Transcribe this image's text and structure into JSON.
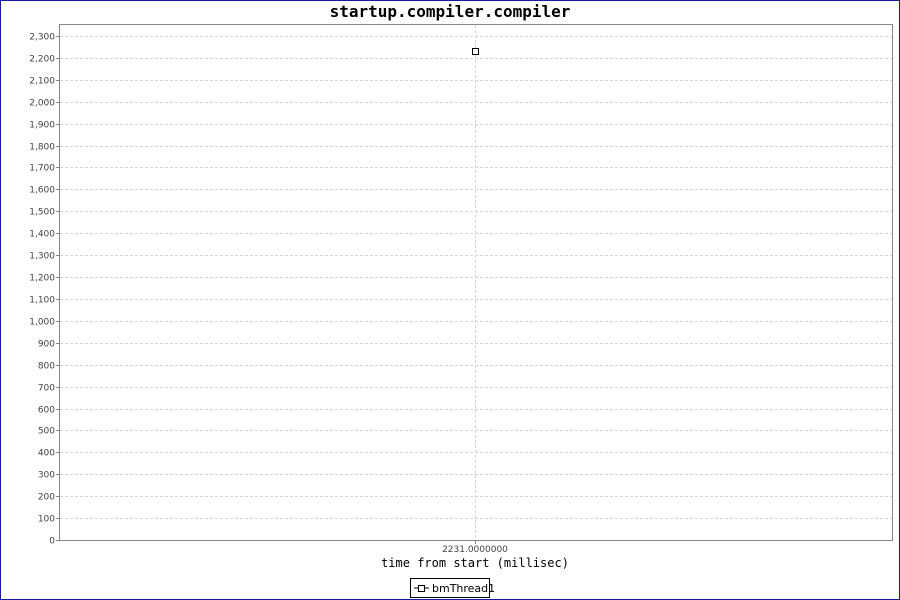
{
  "chart_data": {
    "type": "scatter",
    "title": "startup.compiler.compiler",
    "xlabel": "time from start (millisec)",
    "ylabel": "",
    "x_ticks": [
      "2231.0000000"
    ],
    "ylim": [
      0,
      2350
    ],
    "y_ticks": [
      0,
      100,
      200,
      300,
      400,
      500,
      600,
      700,
      800,
      900,
      1000,
      1100,
      1200,
      1300,
      1400,
      1500,
      1600,
      1700,
      1800,
      1900,
      2000,
      2100,
      2200,
      2300
    ],
    "y_tick_labels": [
      "0",
      "100",
      "200",
      "300",
      "400",
      "500",
      "600",
      "700",
      "800",
      "900",
      "1,000",
      "1,100",
      "1,200",
      "1,300",
      "1,400",
      "1,500",
      "1,600",
      "1,700",
      "1,800",
      "1,900",
      "2,000",
      "2,100",
      "2,200",
      "2,300"
    ],
    "grid": true,
    "legend_position": "bottom-center",
    "series": [
      {
        "name": "bmThread1",
        "x": [
          2231.0
        ],
        "y": [
          2231
        ],
        "marker": "square",
        "color": "#000000"
      }
    ]
  }
}
